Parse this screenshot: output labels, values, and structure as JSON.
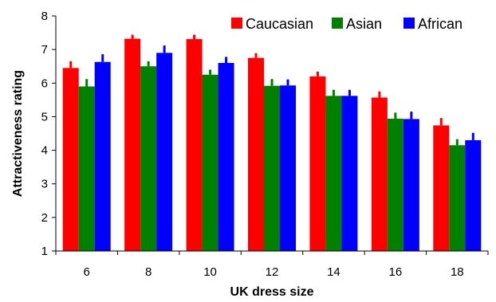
{
  "chart_data": {
    "type": "bar",
    "title": "",
    "xlabel": "UK dress size",
    "ylabel": "Attractiveness rating",
    "categories": [
      "6",
      "8",
      "10",
      "12",
      "14",
      "16",
      "18"
    ],
    "ylim": [
      1,
      8
    ],
    "yticks": [
      1,
      2,
      3,
      4,
      5,
      6,
      7,
      8
    ],
    "legend_position": "top-right",
    "grid": false,
    "series": [
      {
        "name": "Caucasian",
        "color": "#ff0000",
        "values": [
          6.45,
          7.32,
          7.31,
          6.75,
          6.2,
          5.57,
          4.74
        ],
        "errors": [
          0.2,
          0.12,
          0.13,
          0.14,
          0.14,
          0.18,
          0.22
        ]
      },
      {
        "name": "Asian",
        "color": "#008000",
        "values": [
          5.9,
          6.5,
          6.25,
          5.92,
          5.62,
          4.94,
          4.15
        ],
        "errors": [
          0.22,
          0.15,
          0.15,
          0.2,
          0.18,
          0.18,
          0.18
        ]
      },
      {
        "name": "African",
        "color": "#0000ff",
        "values": [
          6.63,
          6.9,
          6.6,
          5.93,
          5.62,
          4.93,
          4.3
        ],
        "errors": [
          0.23,
          0.22,
          0.18,
          0.18,
          0.18,
          0.22,
          0.22
        ]
      }
    ]
  }
}
